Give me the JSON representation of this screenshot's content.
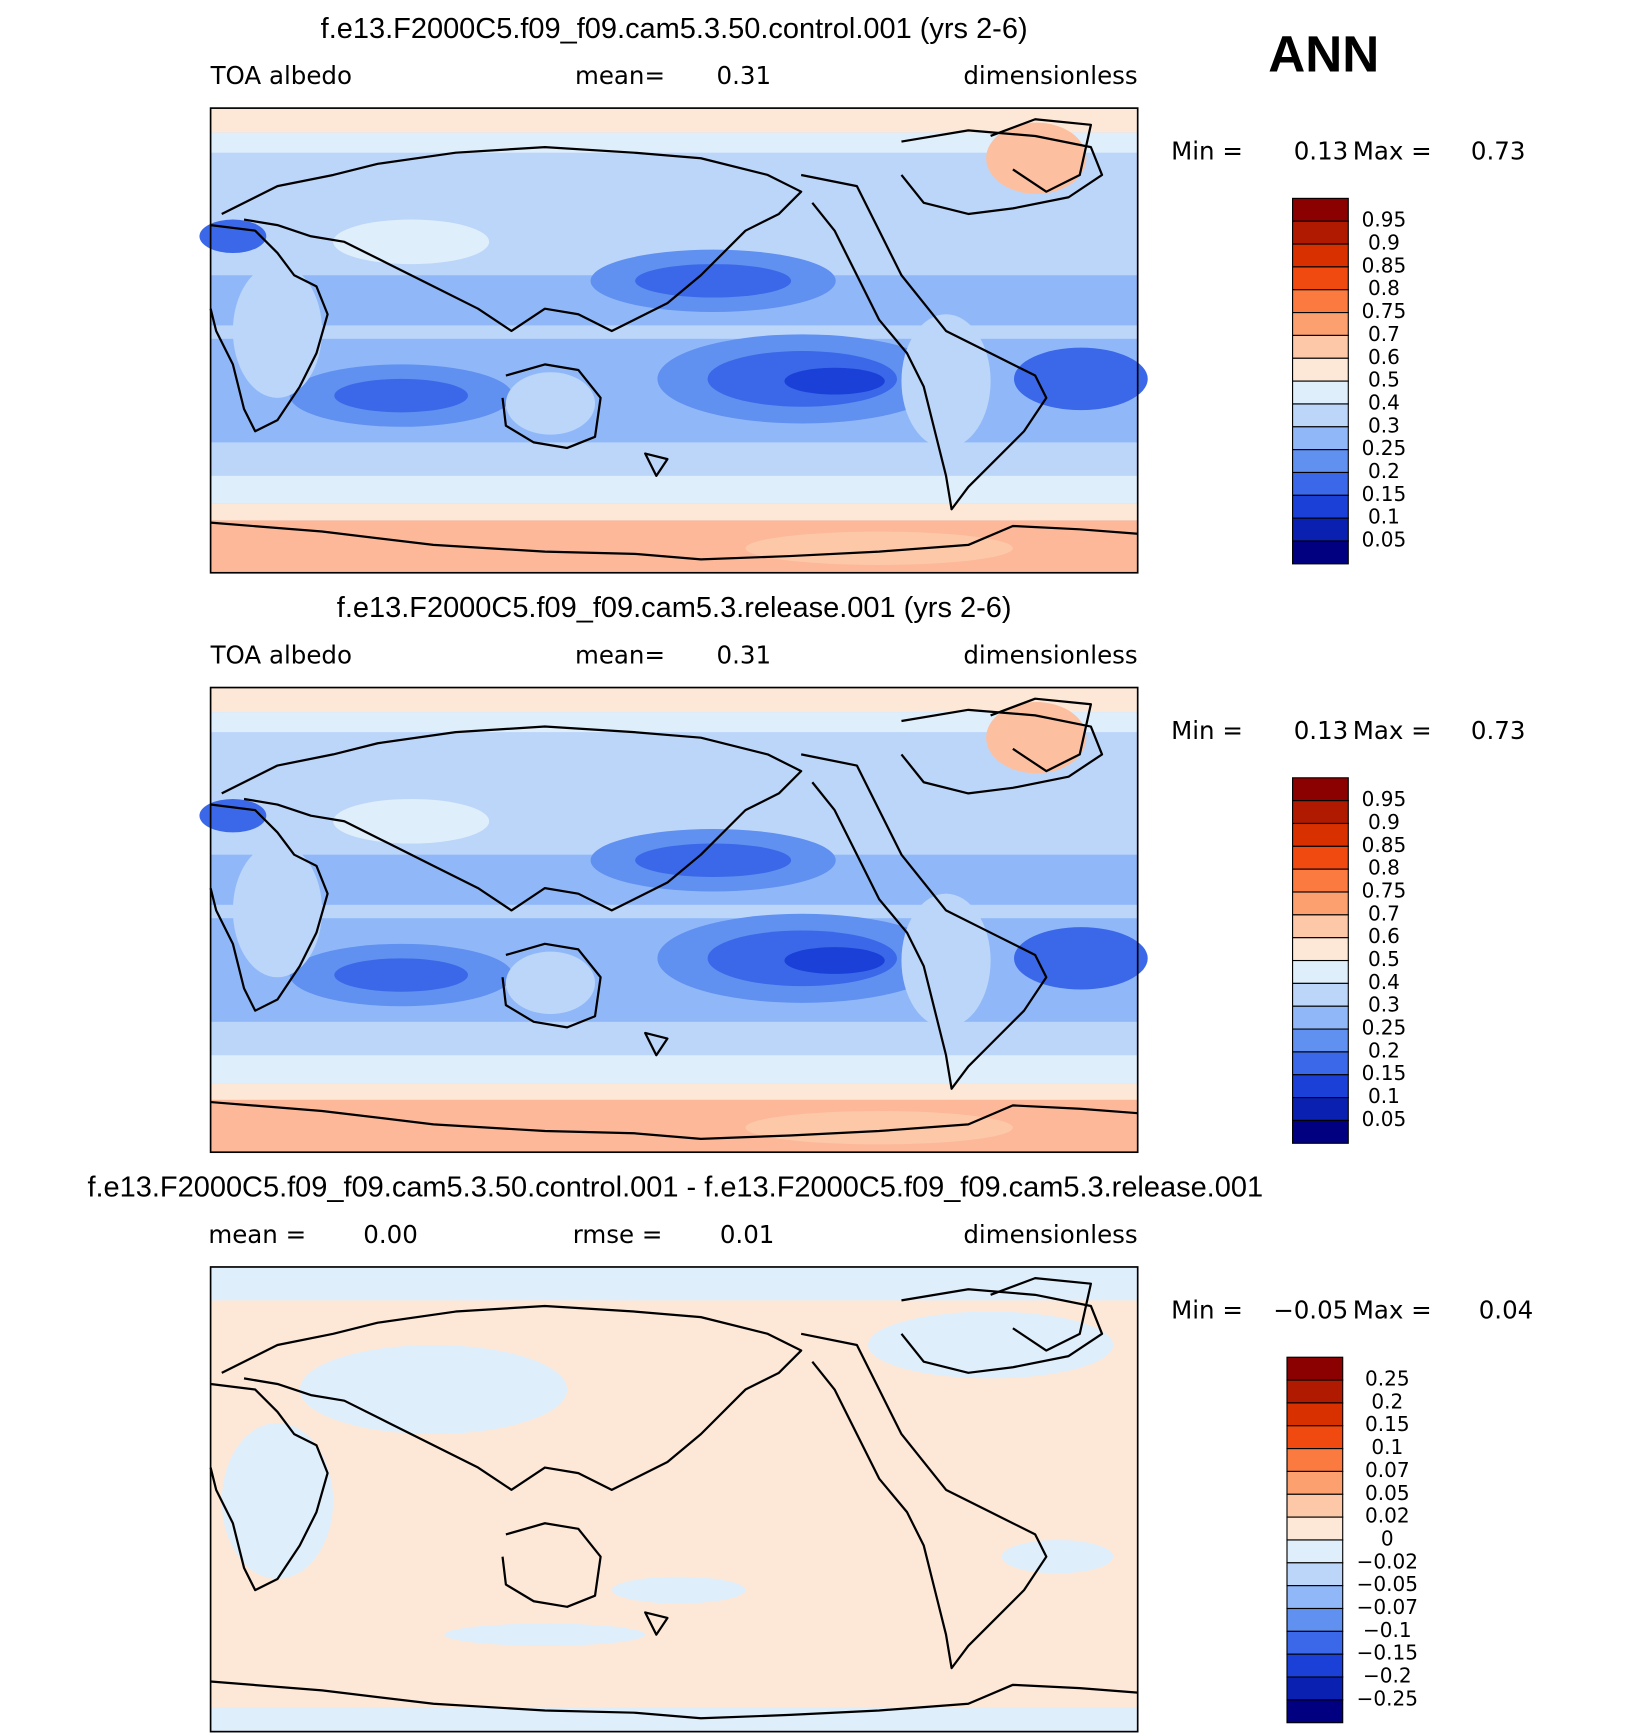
{
  "header": {
    "season": "ANN"
  },
  "panels": [
    {
      "title": "f.e13.F2000C5.f09_f09.cam5.3.50.control.001 (yrs 2-6)",
      "variable": "TOA albedo",
      "stat1_label": "mean=",
      "stat1_value": "0.31",
      "units": "dimensionless",
      "min_label": "Min =",
      "min_value": "0.13",
      "max_label": "Max =",
      "max_value": "0.73",
      "map": "field",
      "colorbar": {
        "labels": [
          "0.95",
          "0.9",
          "0.85",
          "0.8",
          "0.75",
          "0.7",
          "0.6",
          "0.5",
          "0.4",
          "0.3",
          "0.25",
          "0.2",
          "0.15",
          "0.1",
          "0.05"
        ]
      }
    },
    {
      "title": "f.e13.F2000C5.f09_f09.cam5.3.release.001 (yrs 2-6)",
      "variable": "TOA albedo",
      "stat1_label": "mean=",
      "stat1_value": "0.31",
      "units": "dimensionless",
      "min_label": "Min =",
      "min_value": "0.13",
      "max_label": "Max =",
      "max_value": "0.73",
      "map": "field",
      "colorbar": {
        "labels": [
          "0.95",
          "0.9",
          "0.85",
          "0.8",
          "0.75",
          "0.7",
          "0.6",
          "0.5",
          "0.4",
          "0.3",
          "0.25",
          "0.2",
          "0.15",
          "0.1",
          "0.05"
        ]
      }
    },
    {
      "title": "f.e13.F2000C5.f09_f09.cam5.3.50.control.001 - f.e13.F2000C5.f09_f09.cam5.3.release.001",
      "stat1_label": "mean =",
      "stat1_value": "0.00",
      "stat2_label": "rmse =",
      "stat2_value": "0.01",
      "units": "dimensionless",
      "min_label": "Min =",
      "min_value": "−0.05",
      "max_label": "Max =",
      "max_value": "0.04",
      "map": "diff",
      "colorbar": {
        "labels": [
          "0.25",
          "0.2",
          "0.15",
          "0.1",
          "0.07",
          "0.05",
          "0.02",
          "0",
          "−0.02",
          "−0.05",
          "−0.07",
          "−0.1",
          "−0.15",
          "−0.2",
          "−0.25"
        ]
      }
    }
  ],
  "colorbar_colors": [
    "#8b0000",
    "#b01a00",
    "#d93000",
    "#f04a10",
    "#fa7a40",
    "#fca070",
    "#fdc8a8",
    "#fde8d8",
    "#dfeefb",
    "#bcd6fa",
    "#90b8f8",
    "#6090f0",
    "#3a68e8",
    "#1a40d8",
    "#0a20b0",
    "#000080"
  ]
}
